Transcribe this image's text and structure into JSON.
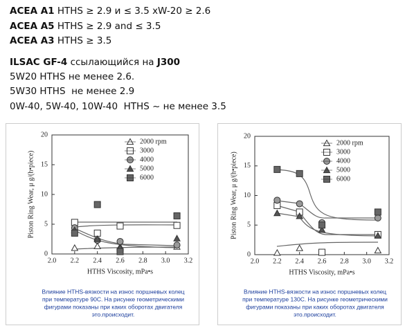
{
  "lines": [
    [
      "ACEA A1",
      " HTHS ≥ 2.9 и ≤ 3.5 xW-20 ≥ 2.6"
    ],
    [
      "ACEA A5",
      " HTHS ≥ 2.9 and ≤ 3.5"
    ],
    [
      "ACEA A3",
      " HTHS ≥ 3.5"
    ],
    [
      "ILSAC GF-4",
      " ссылающийся на ",
      "J300"
    ],
    [
      "5W20 HTHS не менее 2.6."
    ],
    [
      "5W30 HTHS  не менее 2.9"
    ],
    [
      "0W-40, 5W-40, 10W-40  HTHS ~ не менее 3.5"
    ]
  ],
  "figures": [
    {
      "chart_data": {
        "type": "scatter",
        "x_label": "HTHS Viscosity, mPa•s",
        "y_label": "Piston Ring Wear, μ g/(h•piece)",
        "x": [
          2.2,
          2.4,
          2.6,
          3.1
        ],
        "xlim": [
          2.0,
          3.2
        ],
        "xticks": [
          {
            "value": 2.0,
            "label": "2.0"
          },
          2.2,
          2.4,
          2.6,
          2.8,
          {
            "value": 3.0,
            "label": "3.0"
          },
          3.2
        ],
        "ylim": [
          0,
          20
        ],
        "yticks": [
          0,
          5,
          10,
          15,
          20
        ],
        "series": [
          {
            "name": "2000 rpm",
            "marker": "triangle",
            "color": "#ffffff",
            "values": [
              1.0,
              1.3,
              1.2,
              1.2
            ]
          },
          {
            "name": "3000",
            "marker": "square",
            "color": "#ffffff",
            "values": [
              5.3,
              3.5,
              4.7,
              4.8
            ]
          },
          {
            "name": "4000",
            "marker": "circle",
            "color": "#999999",
            "values": [
              4.4,
              2.3,
              2.1,
              1.5
            ]
          },
          {
            "name": "5000",
            "marker": "triangle",
            "color": "#555555",
            "values": [
              4.0,
              2.5,
              1.0,
              2.6
            ]
          },
          {
            "name": "6000",
            "marker": "square",
            "color": "#666666",
            "values": [
              3.5,
              8.3,
              0.4,
              6.4
            ]
          }
        ]
      },
      "caption": [
        "Влияние HTHS-вязкости на износ поршневых колец",
        "при температуре 90С. На рисунке геометрическими",
        "фигурами показаны при каких оборотах двигателя",
        "это.происходит."
      ]
    },
    {
      "chart_data": {
        "type": "scatter",
        "x_label": "HTHS Viscosity, mPa•s",
        "y_label": "Piston Ring Wear, μ g/(h•piece)",
        "x": [
          2.2,
          2.4,
          2.6,
          3.1
        ],
        "xlim": [
          2.0,
          3.2
        ],
        "xticks": [
          {
            "value": 2.0,
            "label": "2.0"
          },
          2.2,
          2.4,
          2.6,
          2.8,
          {
            "value": 3.0,
            "label": "3.0"
          },
          3.2
        ],
        "ylim": [
          0,
          20
        ],
        "yticks": [
          0,
          5,
          10,
          15,
          20
        ],
        "series": [
          {
            "name": "2000 rpm",
            "marker": "triangle",
            "color": "#ffffff",
            "values": [
              0.3,
              1.1,
              0.3,
              0.7
            ]
          },
          {
            "name": "3000",
            "marker": "square",
            "color": "#ffffff",
            "values": [
              8.3,
              7.2,
              0.4,
              3.4
            ]
          },
          {
            "name": "4000",
            "marker": "circle",
            "color": "#999999",
            "values": [
              9.2,
              8.6,
              5.4,
              6.2
            ]
          },
          {
            "name": "5000",
            "marker": "triangle",
            "color": "#555555",
            "values": [
              7.0,
              6.5,
              4.2,
              3.2
            ]
          },
          {
            "name": "6000",
            "marker": "square",
            "color": "#666666",
            "values": [
              14.4,
              13.7,
              5.0,
              7.2
            ]
          }
        ]
      },
      "caption": [
        "Влияние HTHS-вязкости на износ поршневых колец",
        "при температуре 130С. На рисунке геометрическими",
        "фигурами показаны при каких оборотах двигателя",
        "это.происходит."
      ]
    }
  ]
}
